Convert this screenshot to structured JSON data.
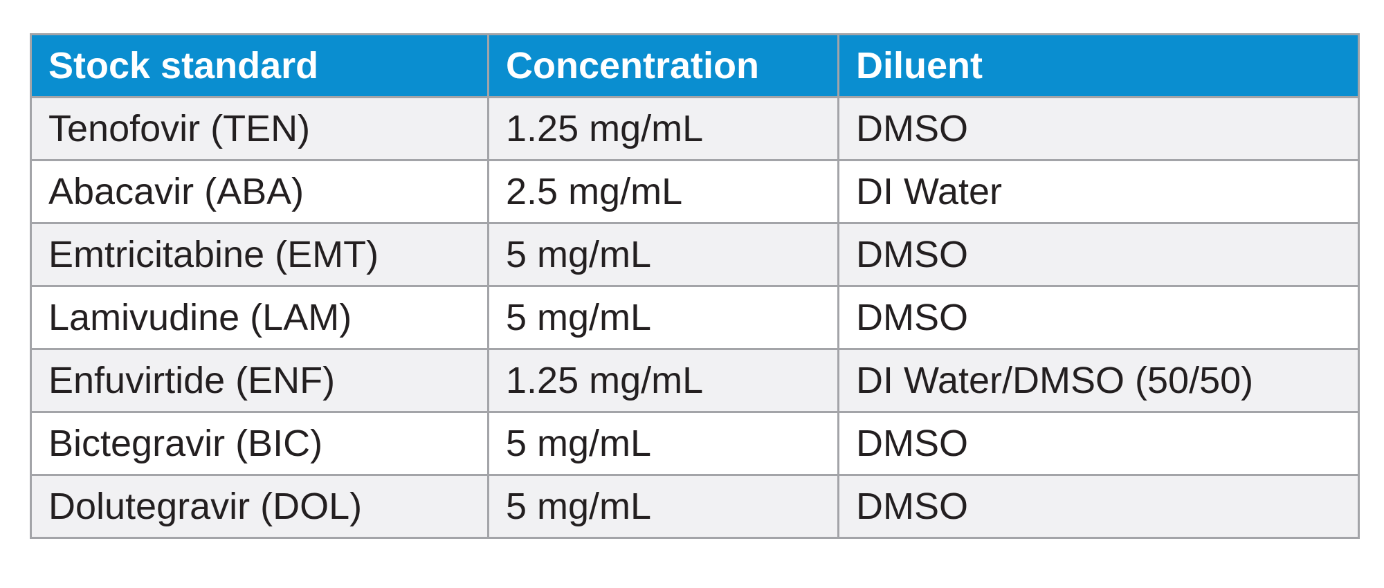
{
  "table": {
    "header": [
      "Stock standard",
      "Concentration",
      "Diluent"
    ],
    "rows": [
      [
        "Tenofovir (TEN)",
        "1.25 mg/mL",
        "DMSO"
      ],
      [
        "Abacavir (ABA)",
        "2.5 mg/mL",
        "DI Water"
      ],
      [
        "Emtricitabine (EMT)",
        "5 mg/mL",
        "DMSO"
      ],
      [
        "Lamivudine (LAM)",
        "5 mg/mL",
        "DMSO"
      ],
      [
        "Enfuvirtide (ENF)",
        "1.25 mg/mL",
        "DI Water/DMSO (50/50)"
      ],
      [
        "Bictegravir (BIC)",
        "5 mg/mL",
        "DMSO"
      ],
      [
        "Dolutegravir (DOL)",
        "5 mg/mL",
        "DMSO"
      ]
    ]
  }
}
